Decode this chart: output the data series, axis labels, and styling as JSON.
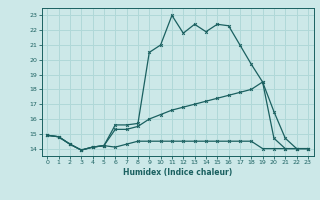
{
  "title": "",
  "xlabel": "Humidex (Indice chaleur)",
  "bg_color": "#cce8e8",
  "line_color": "#1a6060",
  "grid_color": "#b0d8d8",
  "xlim": [
    -0.5,
    23.5
  ],
  "ylim": [
    13.5,
    23.5
  ],
  "xticks": [
    0,
    1,
    2,
    3,
    4,
    5,
    6,
    7,
    8,
    9,
    10,
    11,
    12,
    13,
    14,
    15,
    16,
    17,
    18,
    19,
    20,
    21,
    22,
    23
  ],
  "yticks": [
    14,
    15,
    16,
    17,
    18,
    19,
    20,
    21,
    22,
    23
  ],
  "line1_x": [
    0,
    1,
    2,
    3,
    4,
    5,
    6,
    7,
    8,
    9,
    10,
    11,
    12,
    13,
    14,
    15,
    16,
    17,
    18,
    19,
    20,
    21,
    22,
    23
  ],
  "line1_y": [
    14.9,
    14.8,
    14.3,
    13.9,
    14.1,
    14.2,
    15.6,
    15.6,
    15.7,
    20.5,
    21.0,
    23.0,
    21.8,
    22.4,
    21.9,
    22.4,
    22.3,
    21.0,
    19.7,
    18.5,
    14.7,
    14.0,
    14.0,
    14.0
  ],
  "line2_x": [
    0,
    1,
    2,
    3,
    4,
    5,
    6,
    7,
    8,
    9,
    10,
    11,
    12,
    13,
    14,
    15,
    16,
    17,
    18,
    19,
    20,
    21,
    22,
    23
  ],
  "line2_y": [
    14.9,
    14.8,
    14.3,
    13.9,
    14.1,
    14.2,
    15.3,
    15.3,
    15.5,
    16.0,
    16.3,
    16.6,
    16.8,
    17.0,
    17.2,
    17.4,
    17.6,
    17.8,
    18.0,
    18.5,
    16.5,
    14.7,
    14.0,
    14.0
  ],
  "line3_x": [
    0,
    1,
    2,
    3,
    4,
    5,
    6,
    7,
    8,
    9,
    10,
    11,
    12,
    13,
    14,
    15,
    16,
    17,
    18,
    19,
    20,
    21,
    22,
    23
  ],
  "line3_y": [
    14.9,
    14.8,
    14.3,
    13.9,
    14.1,
    14.2,
    14.1,
    14.3,
    14.5,
    14.5,
    14.5,
    14.5,
    14.5,
    14.5,
    14.5,
    14.5,
    14.5,
    14.5,
    14.5,
    14.0,
    14.0,
    14.0,
    14.0,
    14.0
  ]
}
